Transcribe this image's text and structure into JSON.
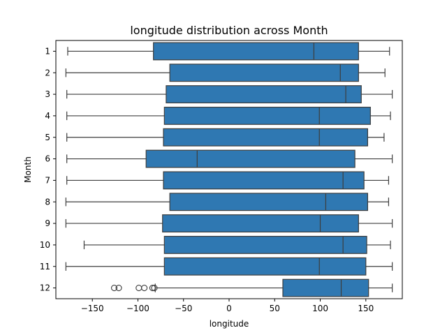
{
  "chart_data": {
    "type": "boxplot",
    "orientation": "horizontal",
    "title": "longitude distribution across Month",
    "xlabel": "longitude",
    "ylabel": "Month",
    "xlim": [
      -190,
      190
    ],
    "xticks": [
      -150,
      -100,
      -50,
      0,
      50,
      100,
      150
    ],
    "xtick_labels": [
      "−150",
      "−100",
      "−50",
      "0",
      "50",
      "100",
      "150"
    ],
    "categories": [
      "1",
      "2",
      "3",
      "4",
      "5",
      "6",
      "7",
      "8",
      "9",
      "10",
      "11",
      "12"
    ],
    "box_color": "#2f78b2",
    "line_color": "#3d3d3d",
    "boxes": [
      {
        "month": "1",
        "whislo": -177,
        "q1": -83,
        "med": 93,
        "q3": 142,
        "whishi": 176,
        "fliers": []
      },
      {
        "month": "2",
        "whislo": -179,
        "q1": -65,
        "med": 122,
        "q3": 142,
        "whishi": 171,
        "fliers": []
      },
      {
        "month": "3",
        "whislo": -178,
        "q1": -69,
        "med": 128,
        "q3": 145,
        "whishi": 179,
        "fliers": []
      },
      {
        "month": "4",
        "whislo": -178,
        "q1": -71,
        "med": 99,
        "q3": 155,
        "whishi": 177,
        "fliers": []
      },
      {
        "month": "5",
        "whislo": -178,
        "q1": -72,
        "med": 99,
        "q3": 152,
        "whishi": 170,
        "fliers": []
      },
      {
        "month": "6",
        "whislo": -178,
        "q1": -91,
        "med": -35,
        "q3": 138,
        "whishi": 179,
        "fliers": []
      },
      {
        "month": "7",
        "whislo": -178,
        "q1": -72,
        "med": 125,
        "q3": 148,
        "whishi": 175,
        "fliers": []
      },
      {
        "month": "8",
        "whislo": -179,
        "q1": -65,
        "med": 106,
        "q3": 152,
        "whishi": 175,
        "fliers": []
      },
      {
        "month": "9",
        "whislo": -179,
        "q1": -73,
        "med": 100,
        "q3": 142,
        "whishi": 179,
        "fliers": []
      },
      {
        "month": "10",
        "whislo": -159,
        "q1": -71,
        "med": 125,
        "q3": 151,
        "whishi": 177,
        "fliers": []
      },
      {
        "month": "11",
        "whislo": -179,
        "q1": -71,
        "med": 99,
        "q3": 150,
        "whishi": 179,
        "fliers": []
      },
      {
        "month": "12",
        "whislo": -81,
        "q1": 59,
        "med": 123,
        "q3": 153,
        "whishi": 179,
        "fliers": [
          -126,
          -121,
          -99,
          -93,
          -84,
          -82
        ]
      }
    ],
    "grid": false,
    "legend": "none"
  }
}
